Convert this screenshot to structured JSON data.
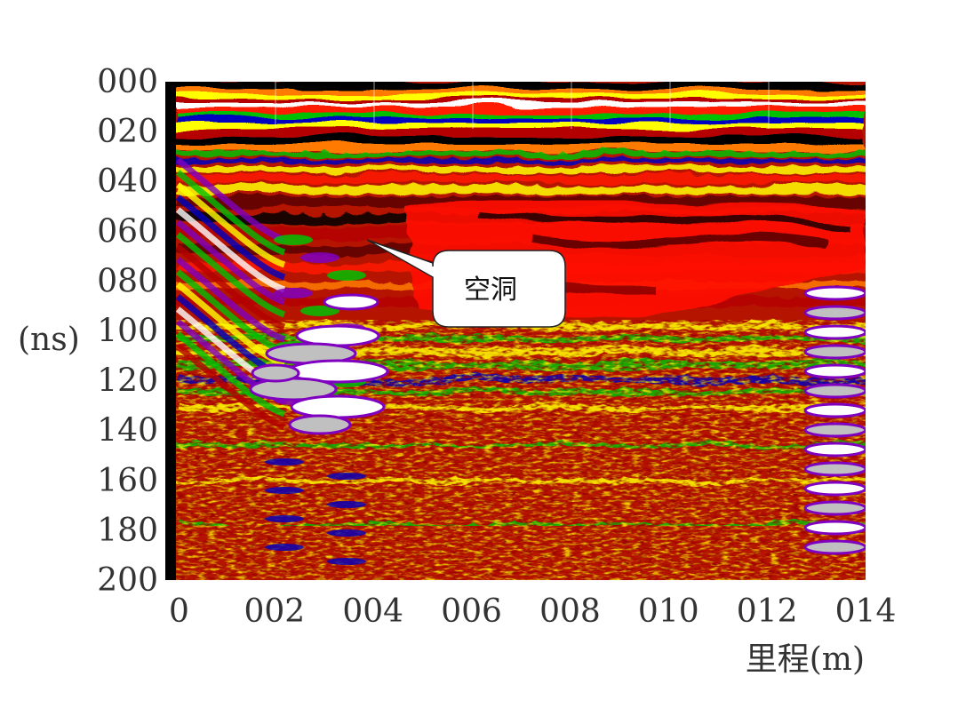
{
  "chart_data": {
    "type": "heatmap",
    "title": "",
    "xlabel": "里程(m)",
    "ylabel": "(ns)",
    "x_tick_labels": [
      "0",
      "002",
      "004",
      "006",
      "008",
      "010",
      "012",
      "014"
    ],
    "x_ticks": [
      0,
      2,
      4,
      6,
      8,
      10,
      12,
      14
    ],
    "y_tick_labels": [
      "000",
      "020",
      "040",
      "060",
      "080",
      "100",
      "120",
      "140",
      "160",
      "180",
      "200"
    ],
    "y_ticks": [
      0,
      20,
      40,
      60,
      80,
      100,
      120,
      140,
      160,
      180,
      200
    ],
    "xlim": [
      0,
      14
    ],
    "ylim": [
      200,
      0
    ],
    "grid": false,
    "colormap": [
      "#000000",
      "#5a0000",
      "#b40000",
      "#ff1a00",
      "#ff7a00",
      "#ffff00",
      "#00c000",
      "#0000c0",
      "#8000c0",
      "#c0c0c0",
      "#ffffff"
    ],
    "annotations": [
      {
        "text": "空洞",
        "target_x": 3.9,
        "target_y": 62
      }
    ]
  }
}
